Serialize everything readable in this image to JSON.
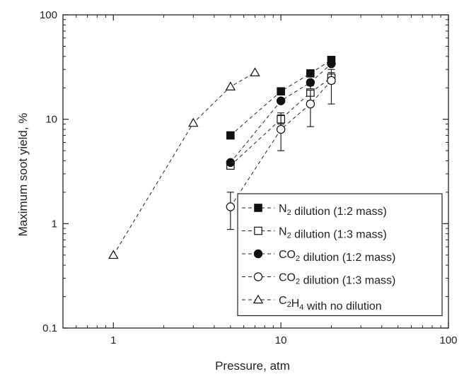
{
  "chart_data": {
    "type": "scatter",
    "xlabel": "Pressure, atm",
    "ylabel": "Maximum soot yield, %",
    "xscale": "log",
    "yscale": "log",
    "xlim": [
      0.5,
      100
    ],
    "ylim": [
      0.1,
      100
    ],
    "x_ticks": [
      {
        "value": 1,
        "label": "1"
      },
      {
        "value": 10,
        "label": "10"
      },
      {
        "value": 100,
        "label": "100"
      }
    ],
    "y_ticks": [
      {
        "value": 0.1,
        "label": "0.1"
      },
      {
        "value": 1,
        "label": "1"
      },
      {
        "value": 10,
        "label": "10"
      },
      {
        "value": 100,
        "label": "100"
      }
    ],
    "grid": false,
    "legend_position": "bottom-right",
    "series": [
      {
        "name": "N2 dilution (1:2 mass)",
        "legend": {
          "prefix": "N",
          "sub": "2",
          "suffix": " dilution (1:2 mass)"
        },
        "marker": "square-filled",
        "line": "dashed",
        "points": [
          {
            "x": 5,
            "y": 7.0
          },
          {
            "x": 10,
            "y": 18.5
          },
          {
            "x": 15,
            "y": 27.5
          },
          {
            "x": 20,
            "y": 37
          }
        ]
      },
      {
        "name": "N2 dilution (1:3 mass)",
        "legend": {
          "prefix": "N",
          "sub": "2",
          "suffix": " dilution (1:3 mass)"
        },
        "marker": "square-open",
        "line": "dashed",
        "points": [
          {
            "x": 5,
            "y": 3.6
          },
          {
            "x": 10,
            "y": 10.0,
            "err_low": 9.0,
            "err_high": 11.5
          },
          {
            "x": 15,
            "y": 18.0,
            "err_low": 15.0,
            "err_high": 21.0
          },
          {
            "x": 20,
            "y": 25.0,
            "err_low": 22.0,
            "err_high": 28.0
          }
        ]
      },
      {
        "name": "CO2 dilution (1:2 mass)",
        "legend": {
          "prefix": "CO",
          "sub": "2",
          "suffix": " dilution (1:2 mass)"
        },
        "marker": "circle-filled",
        "line": "dashed",
        "points": [
          {
            "x": 5,
            "y": 3.85
          },
          {
            "x": 10,
            "y": 15.0
          },
          {
            "x": 15,
            "y": 22.5
          },
          {
            "x": 20,
            "y": 34
          }
        ]
      },
      {
        "name": "CO2 dilution (1:3 mass)",
        "legend": {
          "prefix": "CO",
          "sub": "2",
          "suffix": " dilution (1:3 mass)"
        },
        "marker": "circle-open",
        "line": "dashed",
        "points": [
          {
            "x": 5,
            "y": 1.45,
            "err_low": 0.88,
            "err_high": 2.0
          },
          {
            "x": 10,
            "y": 8.0,
            "err_low": 5.0,
            "err_high": 11.0
          },
          {
            "x": 15,
            "y": 14.0,
            "err_low": 8.5,
            "err_high": 19.0
          },
          {
            "x": 20,
            "y": 23.5,
            "err_low": 14.0,
            "err_high": 30.0
          }
        ]
      },
      {
        "name": "C2H4 with no dilution",
        "legend": {
          "prefix": "C",
          "sub": "2",
          "suffix": "H",
          "sub2": "4",
          "suffix2": " with no dilution"
        },
        "marker": "triangle-open",
        "line": "dashed",
        "points": [
          {
            "x": 1,
            "y": 0.5
          },
          {
            "x": 3,
            "y": 9.2
          },
          {
            "x": 5,
            "y": 20.5
          },
          {
            "x": 7,
            "y": 28
          }
        ]
      }
    ]
  }
}
